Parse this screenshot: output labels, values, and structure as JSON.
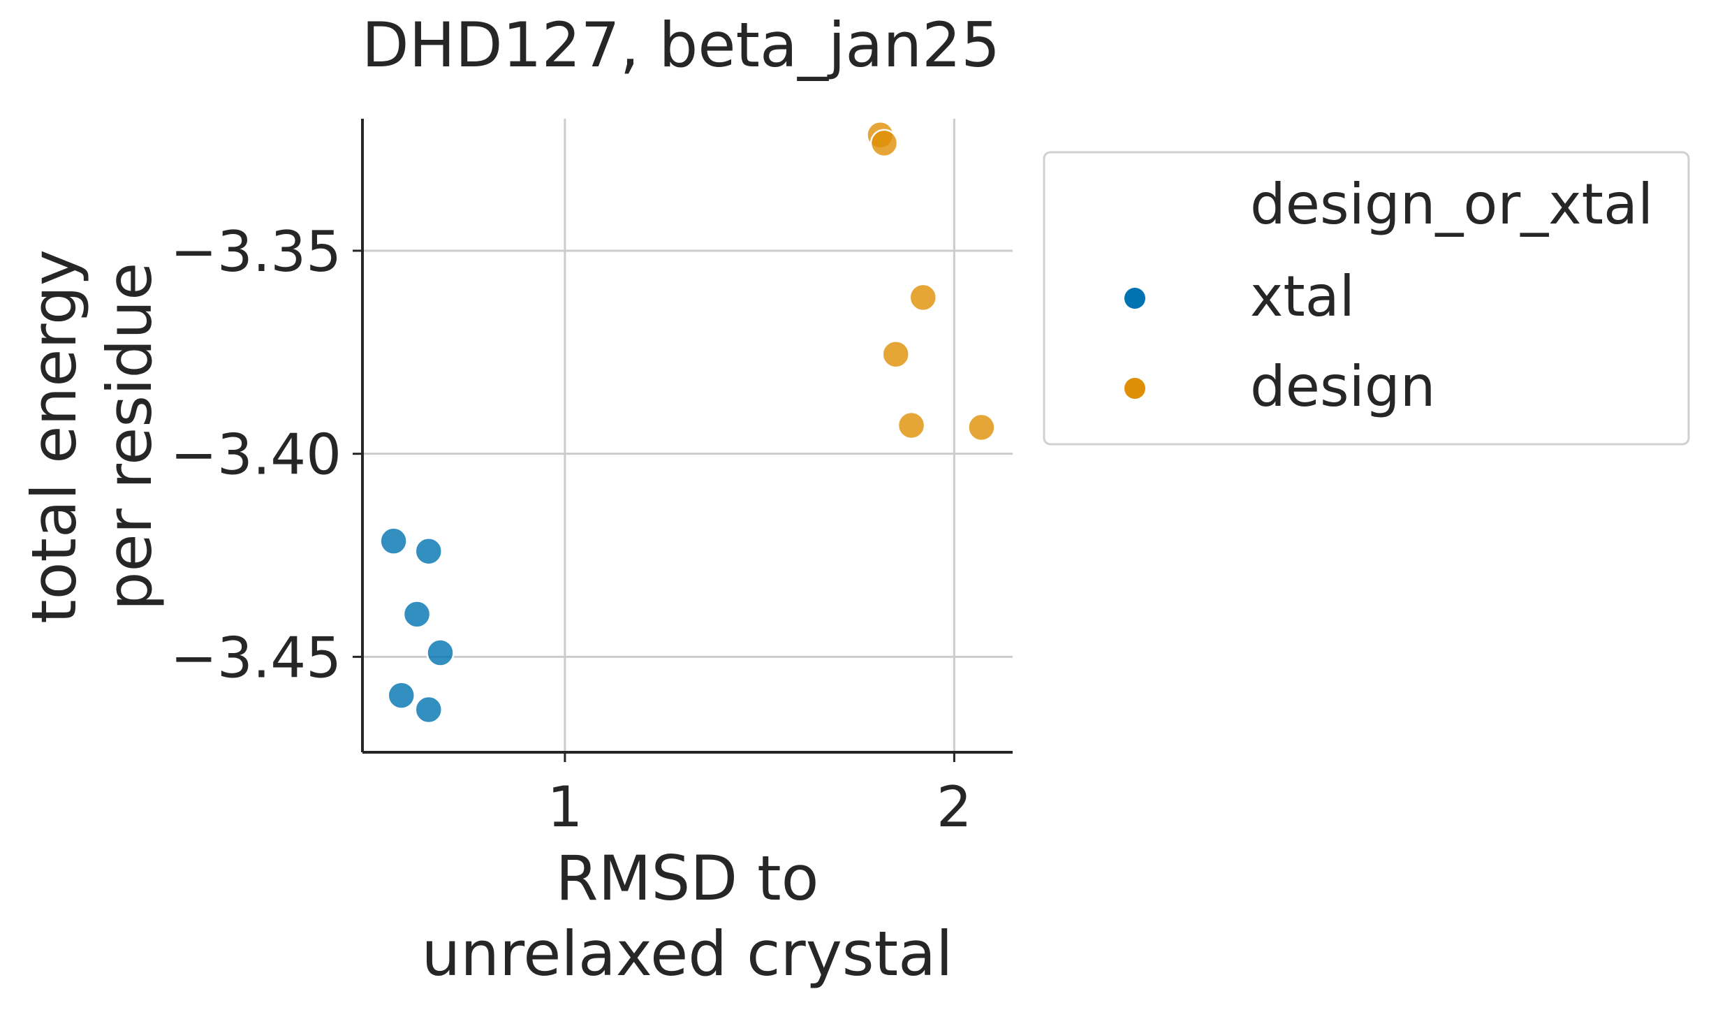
{
  "chart_data": {
    "type": "scatter",
    "title": "DHD127, beta_jan25",
    "xlabel": [
      "RMSD to",
      "unrelaxed crystal"
    ],
    "ylabel": [
      "total energy",
      "per residue"
    ],
    "xlim": [
      0.48,
      2.15
    ],
    "ylim": [
      -3.4735,
      -3.3175
    ],
    "x_ticks": [
      1,
      2
    ],
    "x_tick_labels": [
      "1",
      "2"
    ],
    "y_ticks": [
      -3.35,
      -3.4,
      -3.45
    ],
    "y_tick_labels": [
      "−3.35",
      "−3.40",
      "−3.45"
    ],
    "grid": true,
    "legend": {
      "title": "design_or_xtal",
      "placement": "outside-right",
      "entries": [
        "xtal",
        "design"
      ]
    },
    "series": [
      {
        "name": "xtal",
        "color": "#0173b2",
        "points": [
          {
            "x": 0.56,
            "y": -3.4215
          },
          {
            "x": 0.65,
            "y": -3.424
          },
          {
            "x": 0.62,
            "y": -3.4395
          },
          {
            "x": 0.68,
            "y": -3.449
          },
          {
            "x": 0.58,
            "y": -3.4595
          },
          {
            "x": 0.65,
            "y": -3.463
          }
        ]
      },
      {
        "name": "design",
        "color": "#de8f05",
        "points": [
          {
            "x": 1.81,
            "y": -3.3215
          },
          {
            "x": 1.82,
            "y": -3.3235
          },
          {
            "x": 1.92,
            "y": -3.3615
          },
          {
            "x": 1.85,
            "y": -3.3755
          },
          {
            "x": 1.89,
            "y": -3.393
          },
          {
            "x": 2.07,
            "y": -3.3935
          }
        ]
      }
    ]
  }
}
